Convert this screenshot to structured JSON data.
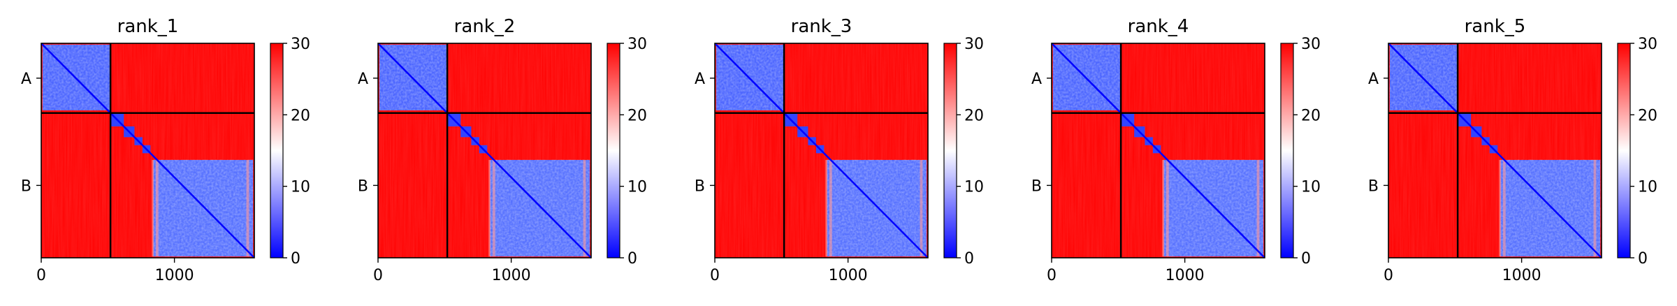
{
  "chart_data": [
    {
      "type": "heatmap",
      "title": "rank_1",
      "xlabel": "",
      "ylabel": "",
      "xlim": [
        0,
        1600
      ],
      "x_ticks": [
        0,
        1000
      ],
      "x_tick_labels": [
        "0",
        "1000"
      ],
      "chain_boundary": 520,
      "chains": [
        {
          "label": "A",
          "start": 0,
          "end": 520
        },
        {
          "label": "B",
          "start": 520,
          "end": 1600
        }
      ],
      "colorbar": {
        "min": 0,
        "max": 30,
        "ticks": [
          0,
          10,
          20,
          30
        ],
        "tick_labels": [
          "0",
          "10",
          "20",
          "30"
        ],
        "colors": [
          "#0000ff",
          "#ffffff",
          "#ff0000"
        ]
      }
    },
    {
      "type": "heatmap",
      "title": "rank_2",
      "xlabel": "",
      "ylabel": "",
      "xlim": [
        0,
        1600
      ],
      "x_ticks": [
        0,
        1000
      ],
      "x_tick_labels": [
        "0",
        "1000"
      ],
      "chain_boundary": 520,
      "chains": [
        {
          "label": "A",
          "start": 0,
          "end": 520
        },
        {
          "label": "B",
          "start": 520,
          "end": 1600
        }
      ],
      "colorbar": {
        "min": 0,
        "max": 30,
        "ticks": [
          0,
          10,
          20,
          30
        ],
        "tick_labels": [
          "0",
          "10",
          "20",
          "30"
        ],
        "colors": [
          "#0000ff",
          "#ffffff",
          "#ff0000"
        ]
      }
    },
    {
      "type": "heatmap",
      "title": "rank_3",
      "xlabel": "",
      "ylabel": "",
      "xlim": [
        0,
        1600
      ],
      "x_ticks": [
        0,
        1000
      ],
      "x_tick_labels": [
        "0",
        "1000"
      ],
      "chain_boundary": 520,
      "chains": [
        {
          "label": "A",
          "start": 0,
          "end": 520
        },
        {
          "label": "B",
          "start": 520,
          "end": 1600
        }
      ],
      "colorbar": {
        "min": 0,
        "max": 30,
        "ticks": [
          0,
          10,
          20,
          30
        ],
        "tick_labels": [
          "0",
          "10",
          "20",
          "30"
        ],
        "colors": [
          "#0000ff",
          "#ffffff",
          "#ff0000"
        ]
      }
    },
    {
      "type": "heatmap",
      "title": "rank_4",
      "xlabel": "",
      "ylabel": "",
      "xlim": [
        0,
        1600
      ],
      "x_ticks": [
        0,
        1000
      ],
      "x_tick_labels": [
        "0",
        "1000"
      ],
      "chain_boundary": 520,
      "chains": [
        {
          "label": "A",
          "start": 0,
          "end": 520
        },
        {
          "label": "B",
          "start": 520,
          "end": 1600
        }
      ],
      "colorbar": {
        "min": 0,
        "max": 30,
        "ticks": [
          0,
          10,
          20,
          30
        ],
        "tick_labels": [
          "0",
          "10",
          "20",
          "30"
        ],
        "colors": [
          "#0000ff",
          "#ffffff",
          "#ff0000"
        ]
      }
    },
    {
      "type": "heatmap",
      "title": "rank_5",
      "xlabel": "",
      "ylabel": "",
      "xlim": [
        0,
        1600
      ],
      "x_ticks": [
        0,
        1000
      ],
      "x_tick_labels": [
        "0",
        "1000"
      ],
      "chain_boundary": 520,
      "chains": [
        {
          "label": "A",
          "start": 0,
          "end": 520
        },
        {
          "label": "B",
          "start": 520,
          "end": 1600
        }
      ],
      "colorbar": {
        "min": 0,
        "max": 30,
        "ticks": [
          0,
          10,
          20,
          30
        ],
        "tick_labels": [
          "0",
          "10",
          "20",
          "30"
        ],
        "colors": [
          "#0000ff",
          "#ffffff",
          "#ff0000"
        ]
      }
    }
  ]
}
